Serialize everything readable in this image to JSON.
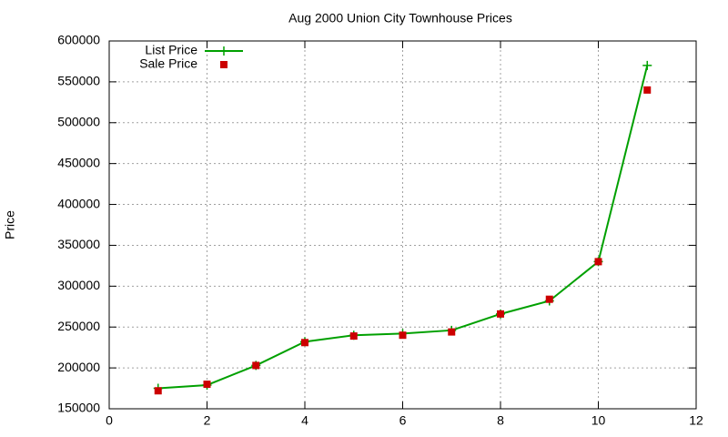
{
  "chart_data": {
    "type": "line",
    "title": "Aug 2000 Union City Townhouse Prices",
    "ylabel": "Price",
    "x": [
      1,
      2,
      3,
      4,
      5,
      6,
      7,
      8,
      9,
      10,
      11
    ],
    "series": [
      {
        "name": "List Price",
        "color": "#00a000",
        "line": true,
        "marker": "plus",
        "values": [
          175000,
          179000,
          203000,
          232000,
          240000,
          242000,
          246000,
          266000,
          282000,
          330000,
          570000
        ]
      },
      {
        "name": "Sale Price",
        "color": "#cc0000",
        "line": false,
        "marker": "square",
        "values": [
          172000,
          180000,
          203000,
          231000,
          239000,
          240000,
          244000,
          266000,
          284000,
          330000,
          540000
        ]
      }
    ],
    "xlim": [
      0,
      12
    ],
    "xticks": [
      0,
      2,
      4,
      6,
      8,
      10,
      12
    ],
    "ylim": [
      150000,
      600000
    ],
    "yticks": [
      150000,
      200000,
      250000,
      300000,
      350000,
      400000,
      450000,
      500000,
      550000,
      600000
    ],
    "grid": true,
    "legend": "top-left"
  }
}
